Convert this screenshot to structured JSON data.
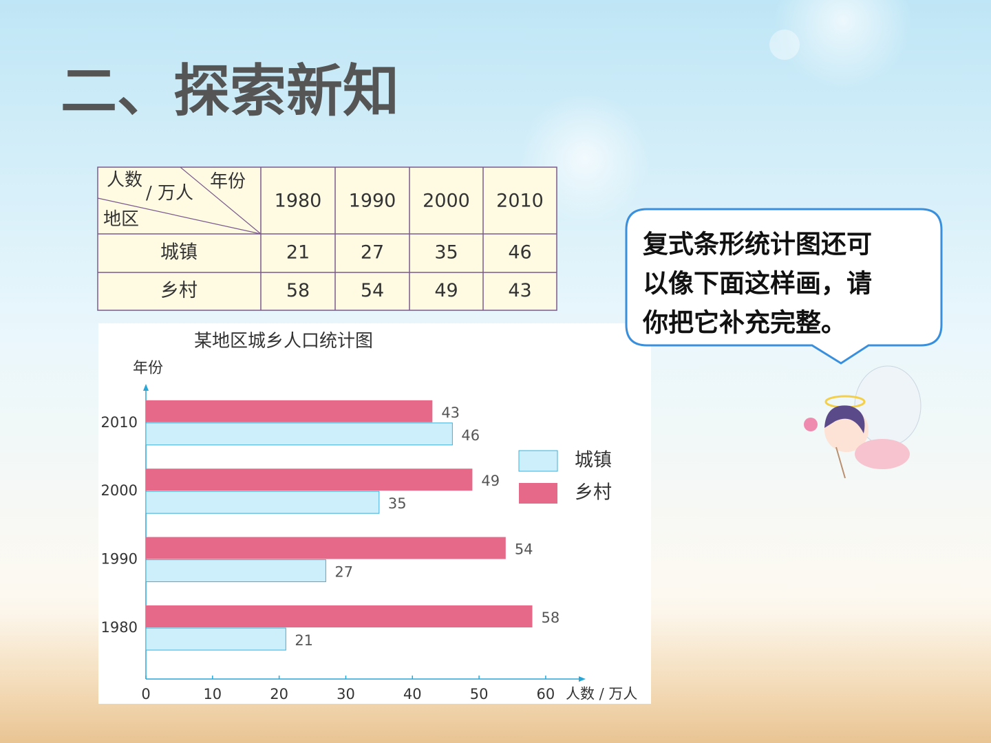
{
  "header": {
    "title": "二、探索新知"
  },
  "table": {
    "corner": {
      "value_label": "人数",
      "unit": "/ 万人",
      "column_label": "年份",
      "row_label": "地区"
    },
    "columns": [
      "1980",
      "1990",
      "2000",
      "2010"
    ],
    "rows": [
      {
        "label": "城镇",
        "values": [
          21,
          27,
          35,
          46
        ]
      },
      {
        "label": "乡村",
        "values": [
          58,
          54,
          49,
          43
        ]
      }
    ]
  },
  "chart_data": {
    "type": "hbar",
    "title": "某地区城乡人口统计图",
    "y_label": "年份",
    "x_label": "人数 / 万人",
    "categories": [
      "1980",
      "1990",
      "2000",
      "2010"
    ],
    "series": [
      {
        "name": "城镇",
        "color": "#cdeefb",
        "values": [
          21,
          27,
          35,
          46
        ]
      },
      {
        "name": "乡村",
        "color": "#e6698a",
        "values": [
          58,
          54,
          49,
          43
        ]
      }
    ],
    "xlim": [
      0,
      66
    ],
    "xticks": [
      0,
      10,
      20,
      30,
      40,
      50,
      60
    ],
    "legend": "right"
  },
  "bubble": {
    "lines": [
      "复式条形统计图还可",
      "以像下面这样画，请",
      "你把它补充完整。"
    ]
  }
}
